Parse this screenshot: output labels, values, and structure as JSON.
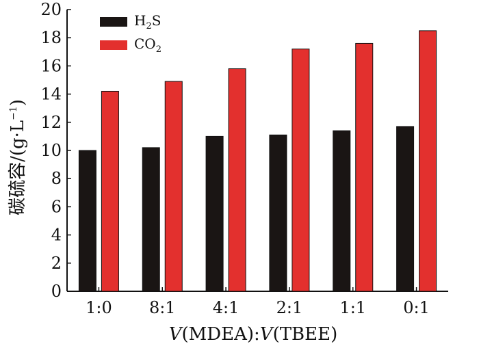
{
  "chart_data": {
    "type": "bar",
    "categories": [
      "1:0",
      "8:1",
      "4:1",
      "2:1",
      "1:1",
      "0:1"
    ],
    "series": [
      {
        "name": "H2S",
        "values": [
          10.0,
          10.2,
          11.0,
          11.1,
          11.4,
          11.7
        ],
        "color": "#1a1514"
      },
      {
        "name": "CO2",
        "values": [
          14.2,
          14.9,
          15.8,
          17.2,
          17.6,
          18.5
        ],
        "color": "#e3302e"
      }
    ],
    "ylim": [
      0,
      20
    ],
    "yticks": [
      "0",
      "2",
      "4",
      "6",
      "8",
      "10",
      "12",
      "14",
      "16",
      "18",
      "20"
    ],
    "xlabel": "V(MDEA):V(TBEE)",
    "ylabel": "碳硫容/(g·L⁻¹)",
    "legend_position": "top-left",
    "grid": false
  }
}
